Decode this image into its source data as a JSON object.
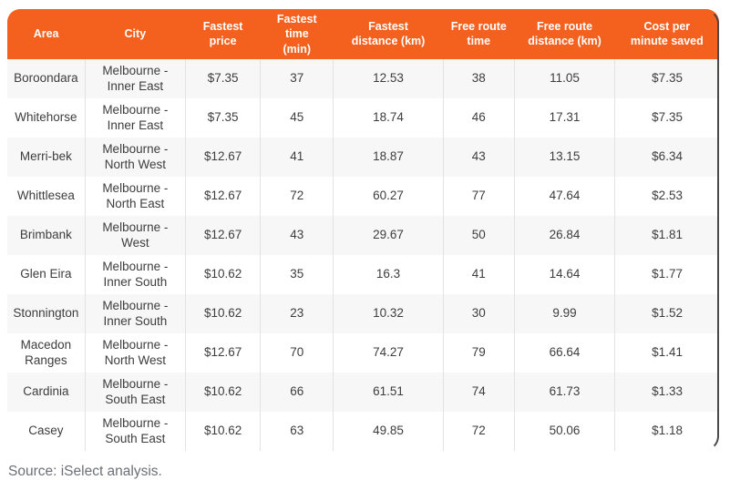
{
  "chart_data": {
    "type": "table",
    "title": "",
    "columns": [
      "Area",
      "City",
      "Fastest\nprice",
      "Fastest time\n(min)",
      "Fastest\ndistance (km)",
      "Free route\ntime",
      "Free route\ndistance (km)",
      "Cost per\nminute saved"
    ],
    "rows": [
      [
        "Boroondara",
        "Melbourne - Inner East",
        "$7.35",
        "37",
        "12.53",
        "38",
        "11.05",
        "$7.35"
      ],
      [
        "Whitehorse",
        "Melbourne - Inner East",
        "$7.35",
        "45",
        "18.74",
        "46",
        "17.31",
        "$7.35"
      ],
      [
        "Merri-bek",
        "Melbourne - North West",
        "$12.67",
        "41",
        "18.87",
        "43",
        "13.15",
        "$6.34"
      ],
      [
        "Whittlesea",
        "Melbourne - North East",
        "$12.67",
        "72",
        "60.27",
        "77",
        "47.64",
        "$2.53"
      ],
      [
        "Brimbank",
        "Melbourne - West",
        "$12.67",
        "43",
        "29.67",
        "50",
        "26.84",
        "$1.81"
      ],
      [
        "Glen Eira",
        "Melbourne - Inner South",
        "$10.62",
        "35",
        "16.3",
        "41",
        "14.64",
        "$1.77"
      ],
      [
        "Stonnington",
        "Melbourne - Inner South",
        "$10.62",
        "23",
        "10.32",
        "30",
        "9.99",
        "$1.52"
      ],
      [
        "Macedon Ranges",
        "Melbourne - North West",
        "$12.67",
        "70",
        "74.27",
        "79",
        "66.64",
        "$1.41"
      ],
      [
        "Cardinia",
        "Melbourne - South East",
        "$10.62",
        "66",
        "61.51",
        "74",
        "61.73",
        "$1.33"
      ],
      [
        "Casey",
        "Melbourne - South East",
        "$10.62",
        "63",
        "49.85",
        "72",
        "50.06",
        "$1.18"
      ]
    ],
    "source": "Source: iSelect analysis."
  },
  "colors": {
    "header_bg": "#f4601d",
    "header_text": "#ffffff",
    "body_text": "#3d3d3d",
    "stripe": "#f7f7f7",
    "divider": "#e3e3e3",
    "edge": "#4a4a4a",
    "source_text": "#6c7077"
  }
}
